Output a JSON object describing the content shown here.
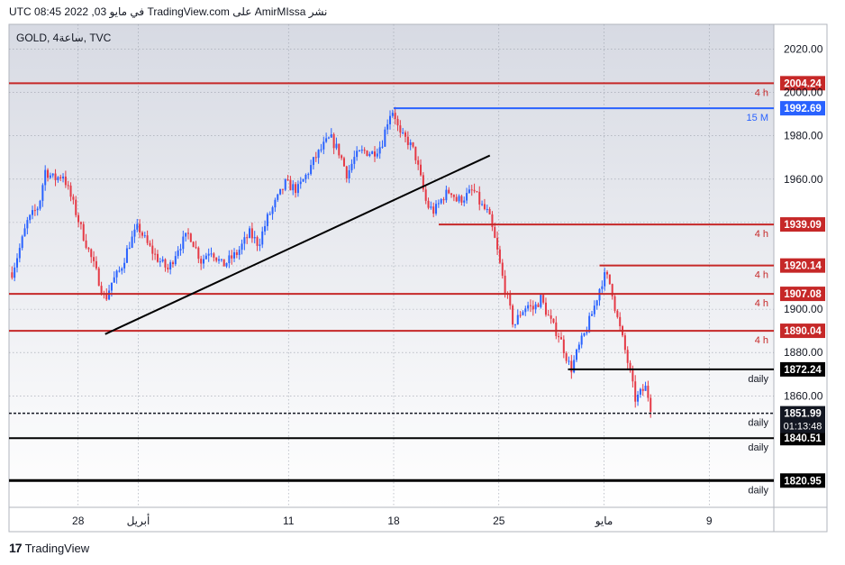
{
  "header": {
    "caption": "نشر AmirMIssa على TradingView.com في مايو 03, 2022 08:45 UTC"
  },
  "symbol_info": "GOLD, 4ساعة, TVC",
  "footer": {
    "brand": "TradingView",
    "logo_mark": "17"
  },
  "colors": {
    "candle_up": "#2962ff",
    "candle_down": "#e53945",
    "level_red": "#c62828",
    "level_blue": "#2962ff",
    "level_black": "#000000",
    "trendline": "#000000"
  },
  "chart_data": {
    "type": "candlestick",
    "title": "GOLD, 4ساعة, TVC",
    "ylim": [
      1808.6,
      2031.4
    ],
    "y_ticks": [
      1860,
      1880,
      1900,
      1920,
      1940,
      1960,
      1980,
      2000,
      2020
    ],
    "y_tick_labels": [
      "1860.00",
      "1880.00",
      "1900.00",
      "",
      "",
      "1960.00",
      "1980.00",
      "2000.00",
      "2020.00"
    ],
    "x_ticks": [
      {
        "day": 0,
        "label": "28"
      },
      {
        "day": 4,
        "label": "أبريل"
      },
      {
        "day": 14,
        "label": "11"
      },
      {
        "day": 21,
        "label": "18"
      },
      {
        "day": 28,
        "label": "25"
      },
      {
        "day": 35,
        "label": "مايو"
      },
      {
        "day": 42,
        "label": "9"
      }
    ],
    "x_range_days": [
      -4.6,
      46.3
    ],
    "price_path": [
      [
        -4.4,
        1917
      ],
      [
        -3.8,
        1930
      ],
      [
        -3.4,
        1940
      ],
      [
        -2.6,
        1948
      ],
      [
        -2.2,
        1964
      ],
      [
        -1.6,
        1960
      ],
      [
        -1.0,
        1962
      ],
      [
        -0.4,
        1950
      ],
      [
        0.3,
        1935
      ],
      [
        0.8,
        1925
      ],
      [
        1.3,
        1915
      ],
      [
        1.8,
        1904
      ],
      [
        2.2,
        1912
      ],
      [
        2.8,
        1918
      ],
      [
        3.4,
        1930
      ],
      [
        4.0,
        1938
      ],
      [
        4.6,
        1930
      ],
      [
        5.2,
        1924
      ],
      [
        6.0,
        1918
      ],
      [
        6.6,
        1928
      ],
      [
        7.4,
        1935
      ],
      [
        8.2,
        1922
      ],
      [
        8.8,
        1928
      ],
      [
        9.6,
        1920
      ],
      [
        10.6,
        1926
      ],
      [
        11.4,
        1935
      ],
      [
        12.0,
        1930
      ],
      [
        12.6,
        1942
      ],
      [
        13.2,
        1950
      ],
      [
        13.8,
        1958
      ],
      [
        14.6,
        1955
      ],
      [
        15.2,
        1962
      ],
      [
        15.8,
        1970
      ],
      [
        16.4,
        1976
      ],
      [
        16.8,
        1979
      ],
      [
        17.4,
        1972
      ],
      [
        17.9,
        1962
      ],
      [
        18.4,
        1970
      ],
      [
        19.0,
        1973
      ],
      [
        19.6,
        1972
      ],
      [
        20.2,
        1976
      ],
      [
        20.7,
        1990
      ],
      [
        21.0,
        1992
      ],
      [
        21.4,
        1980
      ],
      [
        21.9,
        1978
      ],
      [
        22.4,
        1972
      ],
      [
        22.8,
        1960
      ],
      [
        23.2,
        1948
      ],
      [
        23.7,
        1945
      ],
      [
        24.3,
        1952
      ],
      [
        24.8,
        1955
      ],
      [
        25.2,
        1950
      ],
      [
        25.8,
        1952
      ],
      [
        26.3,
        1955
      ],
      [
        26.8,
        1948
      ],
      [
        27.3,
        1944
      ],
      [
        27.8,
        1930
      ],
      [
        28.2,
        1916
      ],
      [
        28.6,
        1904
      ],
      [
        29.0,
        1892
      ],
      [
        29.4,
        1898
      ],
      [
        29.9,
        1902
      ],
      [
        30.3,
        1900
      ],
      [
        30.8,
        1905
      ],
      [
        31.2,
        1898
      ],
      [
        31.6,
        1892
      ],
      [
        32.0,
        1888
      ],
      [
        32.4,
        1880
      ],
      [
        32.8,
        1872
      ],
      [
        33.3,
        1882
      ],
      [
        33.8,
        1890
      ],
      [
        34.3,
        1900
      ],
      [
        34.8,
        1912
      ],
      [
        35.1,
        1916
      ],
      [
        35.5,
        1910
      ],
      [
        35.8,
        1898
      ],
      [
        36.1,
        1890
      ],
      [
        36.5,
        1878
      ],
      [
        36.8,
        1868
      ],
      [
        37.1,
        1858
      ],
      [
        37.5,
        1862
      ],
      [
        37.8,
        1864
      ],
      [
        38.1,
        1855
      ]
    ],
    "trendlines": [
      {
        "from": {
          "day": 1.8,
          "price": 1888.5
        },
        "to": {
          "day": 27.4,
          "price": 1970.9
        }
      }
    ],
    "levels": [
      {
        "price": 2004.24,
        "label": "2004.24",
        "tf": "4 h",
        "color": "#c62828",
        "start_day": -4.6,
        "width": 2
      },
      {
        "price": 1992.69,
        "label": "1992.69",
        "tf": "15 M",
        "color": "#2962ff",
        "start_day": 21.0,
        "width": 2
      },
      {
        "price": 1939.09,
        "label": "1939.09",
        "tf": "4 h",
        "color": "#c62828",
        "start_day": 24.0,
        "width": 2
      },
      {
        "price": 1920.14,
        "label": "1920.14",
        "tf": "4 h",
        "color": "#c62828",
        "start_day": 34.7,
        "width": 2
      },
      {
        "price": 1907.08,
        "label": "1907.08",
        "tf": "4 h",
        "color": "#c62828",
        "start_day": -4.6,
        "width": 2
      },
      {
        "price": 1890.04,
        "label": "1890.04",
        "tf": "4 h",
        "color": "#c62828",
        "start_day": -4.6,
        "width": 2
      },
      {
        "price": 1872.24,
        "label": "1872.24",
        "tf": "daily",
        "color": "#000000",
        "start_day": 32.6,
        "width": 2
      },
      {
        "price": 1840.51,
        "label": "1840.51",
        "tf": "daily",
        "color": "#000000",
        "start_day": -4.6,
        "width": 2
      },
      {
        "price": 1820.95,
        "label": "1820.95",
        "tf": "daily",
        "color": "#000000",
        "start_day": -4.6,
        "width": 3
      }
    ],
    "current_price": {
      "price": 1851.99,
      "label": "1851.99",
      "countdown": "01:13:48",
      "tf": "daily",
      "color": "#131722"
    }
  }
}
